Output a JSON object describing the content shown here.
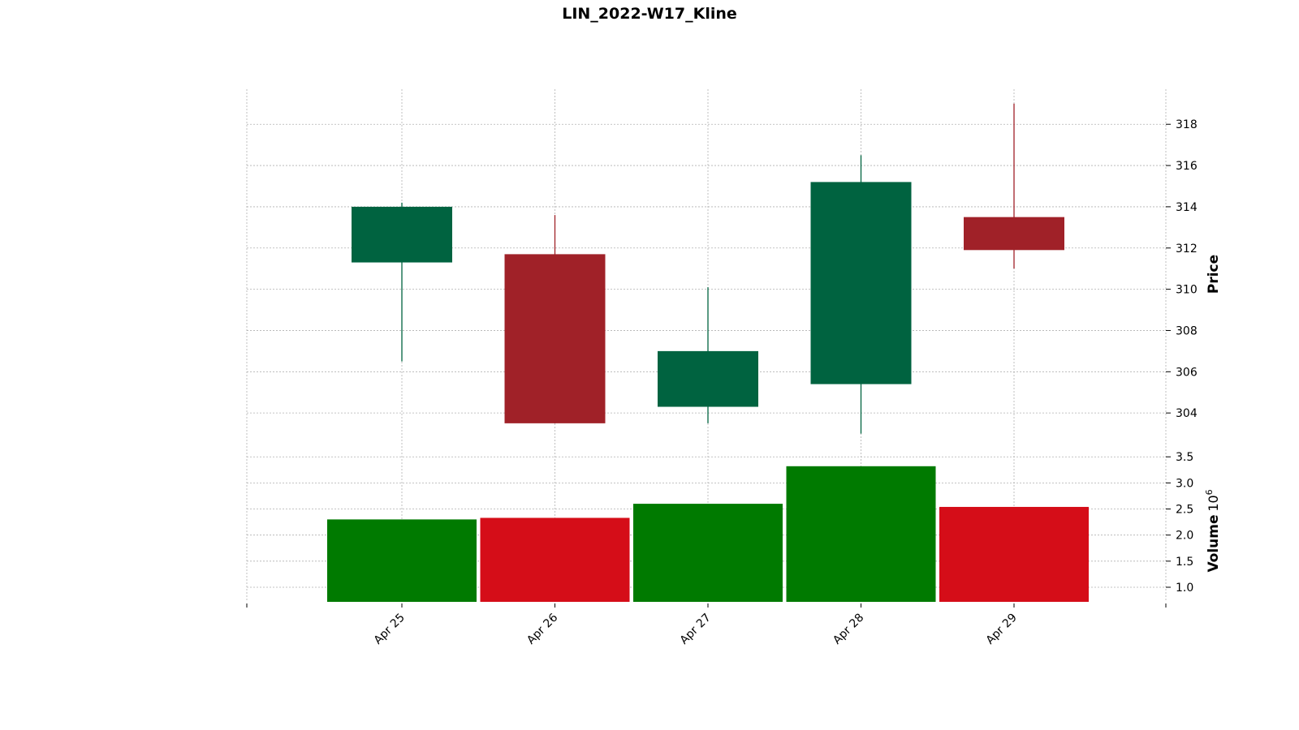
{
  "chart_data": {
    "type": "candlestick",
    "title": "LIN_2022-W17_Kline",
    "categories": [
      "Apr 25",
      "Apr 26",
      "Apr 27",
      "Apr 28",
      "Apr 29"
    ],
    "ohlc": [
      {
        "open": 311.3,
        "high": 314.2,
        "low": 306.5,
        "close": 314.0
      },
      {
        "open": 311.7,
        "high": 313.6,
        "low": 303.5,
        "close": 303.5
      },
      {
        "open": 304.3,
        "high": 310.1,
        "low": 303.5,
        "close": 307.0
      },
      {
        "open": 305.4,
        "high": 316.5,
        "low": 303.0,
        "close": 315.2
      },
      {
        "open": 313.5,
        "high": 319.0,
        "low": 311.0,
        "close": 311.9
      }
    ],
    "volume": [
      2.3,
      2.33,
      2.6,
      3.32,
      2.54
    ],
    "price_axis": {
      "label": "Price",
      "ticks": [
        304,
        306,
        308,
        310,
        312,
        314,
        316,
        318
      ],
      "range": [
        302.0,
        319.7
      ]
    },
    "volume_axis": {
      "label": "Volume",
      "exponent_base": "10",
      "exponent": "6",
      "ticks": [
        "1.0",
        "1.5",
        "2.0",
        "2.5",
        "3.0",
        "3.5"
      ],
      "range": [
        0.72,
        3.55
      ]
    },
    "grid": true,
    "colors": {
      "up_candle": "#006340",
      "down_candle": "#a02128",
      "up_volume": "#007a00",
      "down_volume": "#d50d18"
    }
  }
}
